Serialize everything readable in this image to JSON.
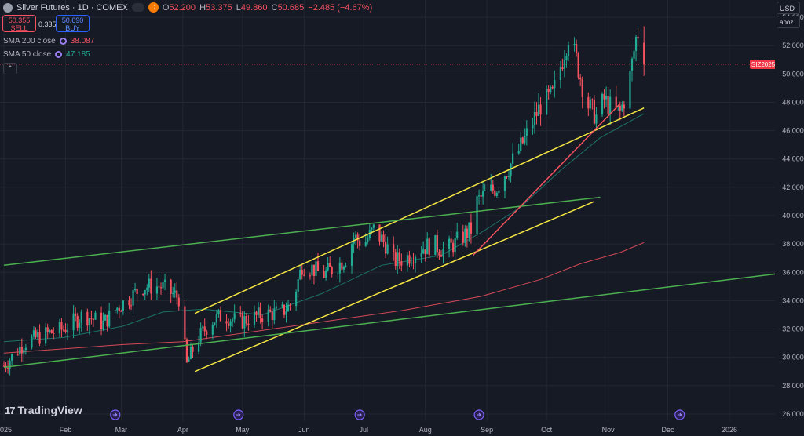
{
  "header": {
    "title": "Silver Futures · 1D · COMEX",
    "ohlc": [
      {
        "label": "O",
        "value": "52.200"
      },
      {
        "label": "H",
        "value": "53.375"
      },
      {
        "label": "L",
        "value": "49.860"
      },
      {
        "label": "C",
        "value": "50.685"
      }
    ],
    "change": "−2.485 (−4.67%)",
    "status_badge": "D"
  },
  "trade": {
    "sell_price": "50.355",
    "sell_label": "SELL",
    "spread": "0.335",
    "buy_price": "50.690",
    "buy_label": "BUY"
  },
  "indicators": [
    {
      "name": "SMA 200 close",
      "value": "38.087",
      "color": "#f7525f"
    },
    {
      "name": "SMA 50 close",
      "value": "47.185",
      "color": "#22ab94"
    }
  ],
  "controls": {
    "currency": "USD",
    "currency_caret": "⌄",
    "scale_mode": "apoz",
    "collapse": "⌃"
  },
  "branding": {
    "logo_mark": "17",
    "logo_text": "TradingView"
  },
  "colors": {
    "background": "#161a25",
    "grid": "#232732",
    "up": "#22ab94",
    "down": "#f7525f",
    "trendline_yellow": "#f5e642",
    "trendline_green": "#4caf50",
    "trendline_red": "#f7525f",
    "sma200": "#f7525f",
    "sma50": "#22ab94",
    "price_line": "#f23645"
  },
  "chart_data": {
    "type": "candlestick",
    "symbol_label": "SIZ2025",
    "last_price": 50.685,
    "y_ticks": [
      26,
      28,
      30,
      32,
      34,
      36,
      38,
      40,
      42,
      44,
      46,
      48,
      50,
      52,
      54
    ],
    "ylim": [
      25.5,
      55
    ],
    "month_labels": [
      "2025",
      "Feb",
      "Mar",
      "Apr",
      "May",
      "Jun",
      "Jul",
      "Aug",
      "Sep",
      "Oct",
      "Nov",
      "Dec",
      "2026"
    ],
    "x_span_days": 395,
    "month_starts": [
      0,
      31,
      59,
      90,
      120,
      151,
      181,
      212,
      243,
      273,
      304,
      334,
      365
    ],
    "price_anchors": [
      [
        0,
        29.4
      ],
      [
        10,
        31.0
      ],
      [
        20,
        31.6
      ],
      [
        30,
        32.0
      ],
      [
        40,
        33.0
      ],
      [
        50,
        32.4
      ],
      [
        57,
        33.5
      ],
      [
        70,
        35.0
      ],
      [
        79,
        35.0
      ],
      [
        88,
        34.2
      ],
      [
        92,
        29.5
      ],
      [
        97,
        31.2
      ],
      [
        104,
        32.5
      ],
      [
        110,
        33.0
      ],
      [
        118,
        32.5
      ],
      [
        130,
        33.0
      ],
      [
        140,
        33.2
      ],
      [
        145,
        33.8
      ],
      [
        150,
        36.5
      ],
      [
        155,
        36.3
      ],
      [
        160,
        35.8
      ],
      [
        166,
        36.3
      ],
      [
        172,
        37.0
      ],
      [
        176,
        38.5
      ],
      [
        181,
        38.0
      ],
      [
        186,
        39.0
      ],
      [
        192,
        38.0
      ],
      [
        196,
        36.8
      ],
      [
        202,
        37.0
      ],
      [
        210,
        37.7
      ],
      [
        216,
        38.0
      ],
      [
        222,
        37.5
      ],
      [
        228,
        38.2
      ],
      [
        235,
        39.0
      ],
      [
        238,
        41.0
      ],
      [
        242,
        41.5
      ],
      [
        248,
        42.0
      ],
      [
        252,
        43.0
      ],
      [
        258,
        44.3
      ],
      [
        264,
        46.0
      ],
      [
        270,
        47.8
      ],
      [
        276,
        48.5
      ],
      [
        280,
        50.5
      ],
      [
        284,
        52.7
      ],
      [
        288,
        51.0
      ],
      [
        293,
        48.0
      ],
      [
        298,
        47.0
      ],
      [
        302,
        48.2
      ],
      [
        306,
        47.5
      ],
      [
        310,
        47.3
      ],
      [
        314,
        49.0
      ],
      [
        318,
        52.5
      ],
      [
        320,
        53.3
      ],
      [
        322,
        50.7
      ]
    ],
    "sma200": [
      [
        0,
        30.3
      ],
      [
        60,
        30.9
      ],
      [
        90,
        31.1
      ],
      [
        150,
        32.3
      ],
      [
        200,
        33.3
      ],
      [
        240,
        34.3
      ],
      [
        270,
        35.5
      ],
      [
        290,
        36.6
      ],
      [
        310,
        37.4
      ],
      [
        322,
        38.1
      ]
    ],
    "sma50": [
      [
        0,
        31.1
      ],
      [
        30,
        31.4
      ],
      [
        60,
        32.2
      ],
      [
        80,
        33.2
      ],
      [
        100,
        33.4
      ],
      [
        130,
        33.0
      ],
      [
        160,
        34.5
      ],
      [
        190,
        36.5
      ],
      [
        220,
        37.2
      ],
      [
        240,
        38.8
      ],
      [
        260,
        40.6
      ],
      [
        280,
        43.2
      ],
      [
        300,
        45.5
      ],
      [
        322,
        47.2
      ]
    ],
    "annotation_days": [
      56,
      118,
      179,
      239,
      340
    ],
    "trendlines": [
      {
        "color": "yellow",
        "from": [
          96,
          33.1
        ],
        "to": [
          322,
          47.6
        ]
      },
      {
        "color": "yellow",
        "from": [
          96,
          29.0
        ],
        "to": [
          297,
          41.0
        ]
      },
      {
        "color": "green",
        "from": [
          0,
          36.5
        ],
        "to": [
          300,
          41.3
        ]
      },
      {
        "color": "green",
        "from": [
          0,
          29.3
        ],
        "to": [
          395,
          36.0
        ]
      },
      {
        "color": "red",
        "from": [
          236,
          37.2
        ],
        "to": [
          310,
          47.9
        ]
      }
    ],
    "currency": "USD",
    "grid": true
  }
}
